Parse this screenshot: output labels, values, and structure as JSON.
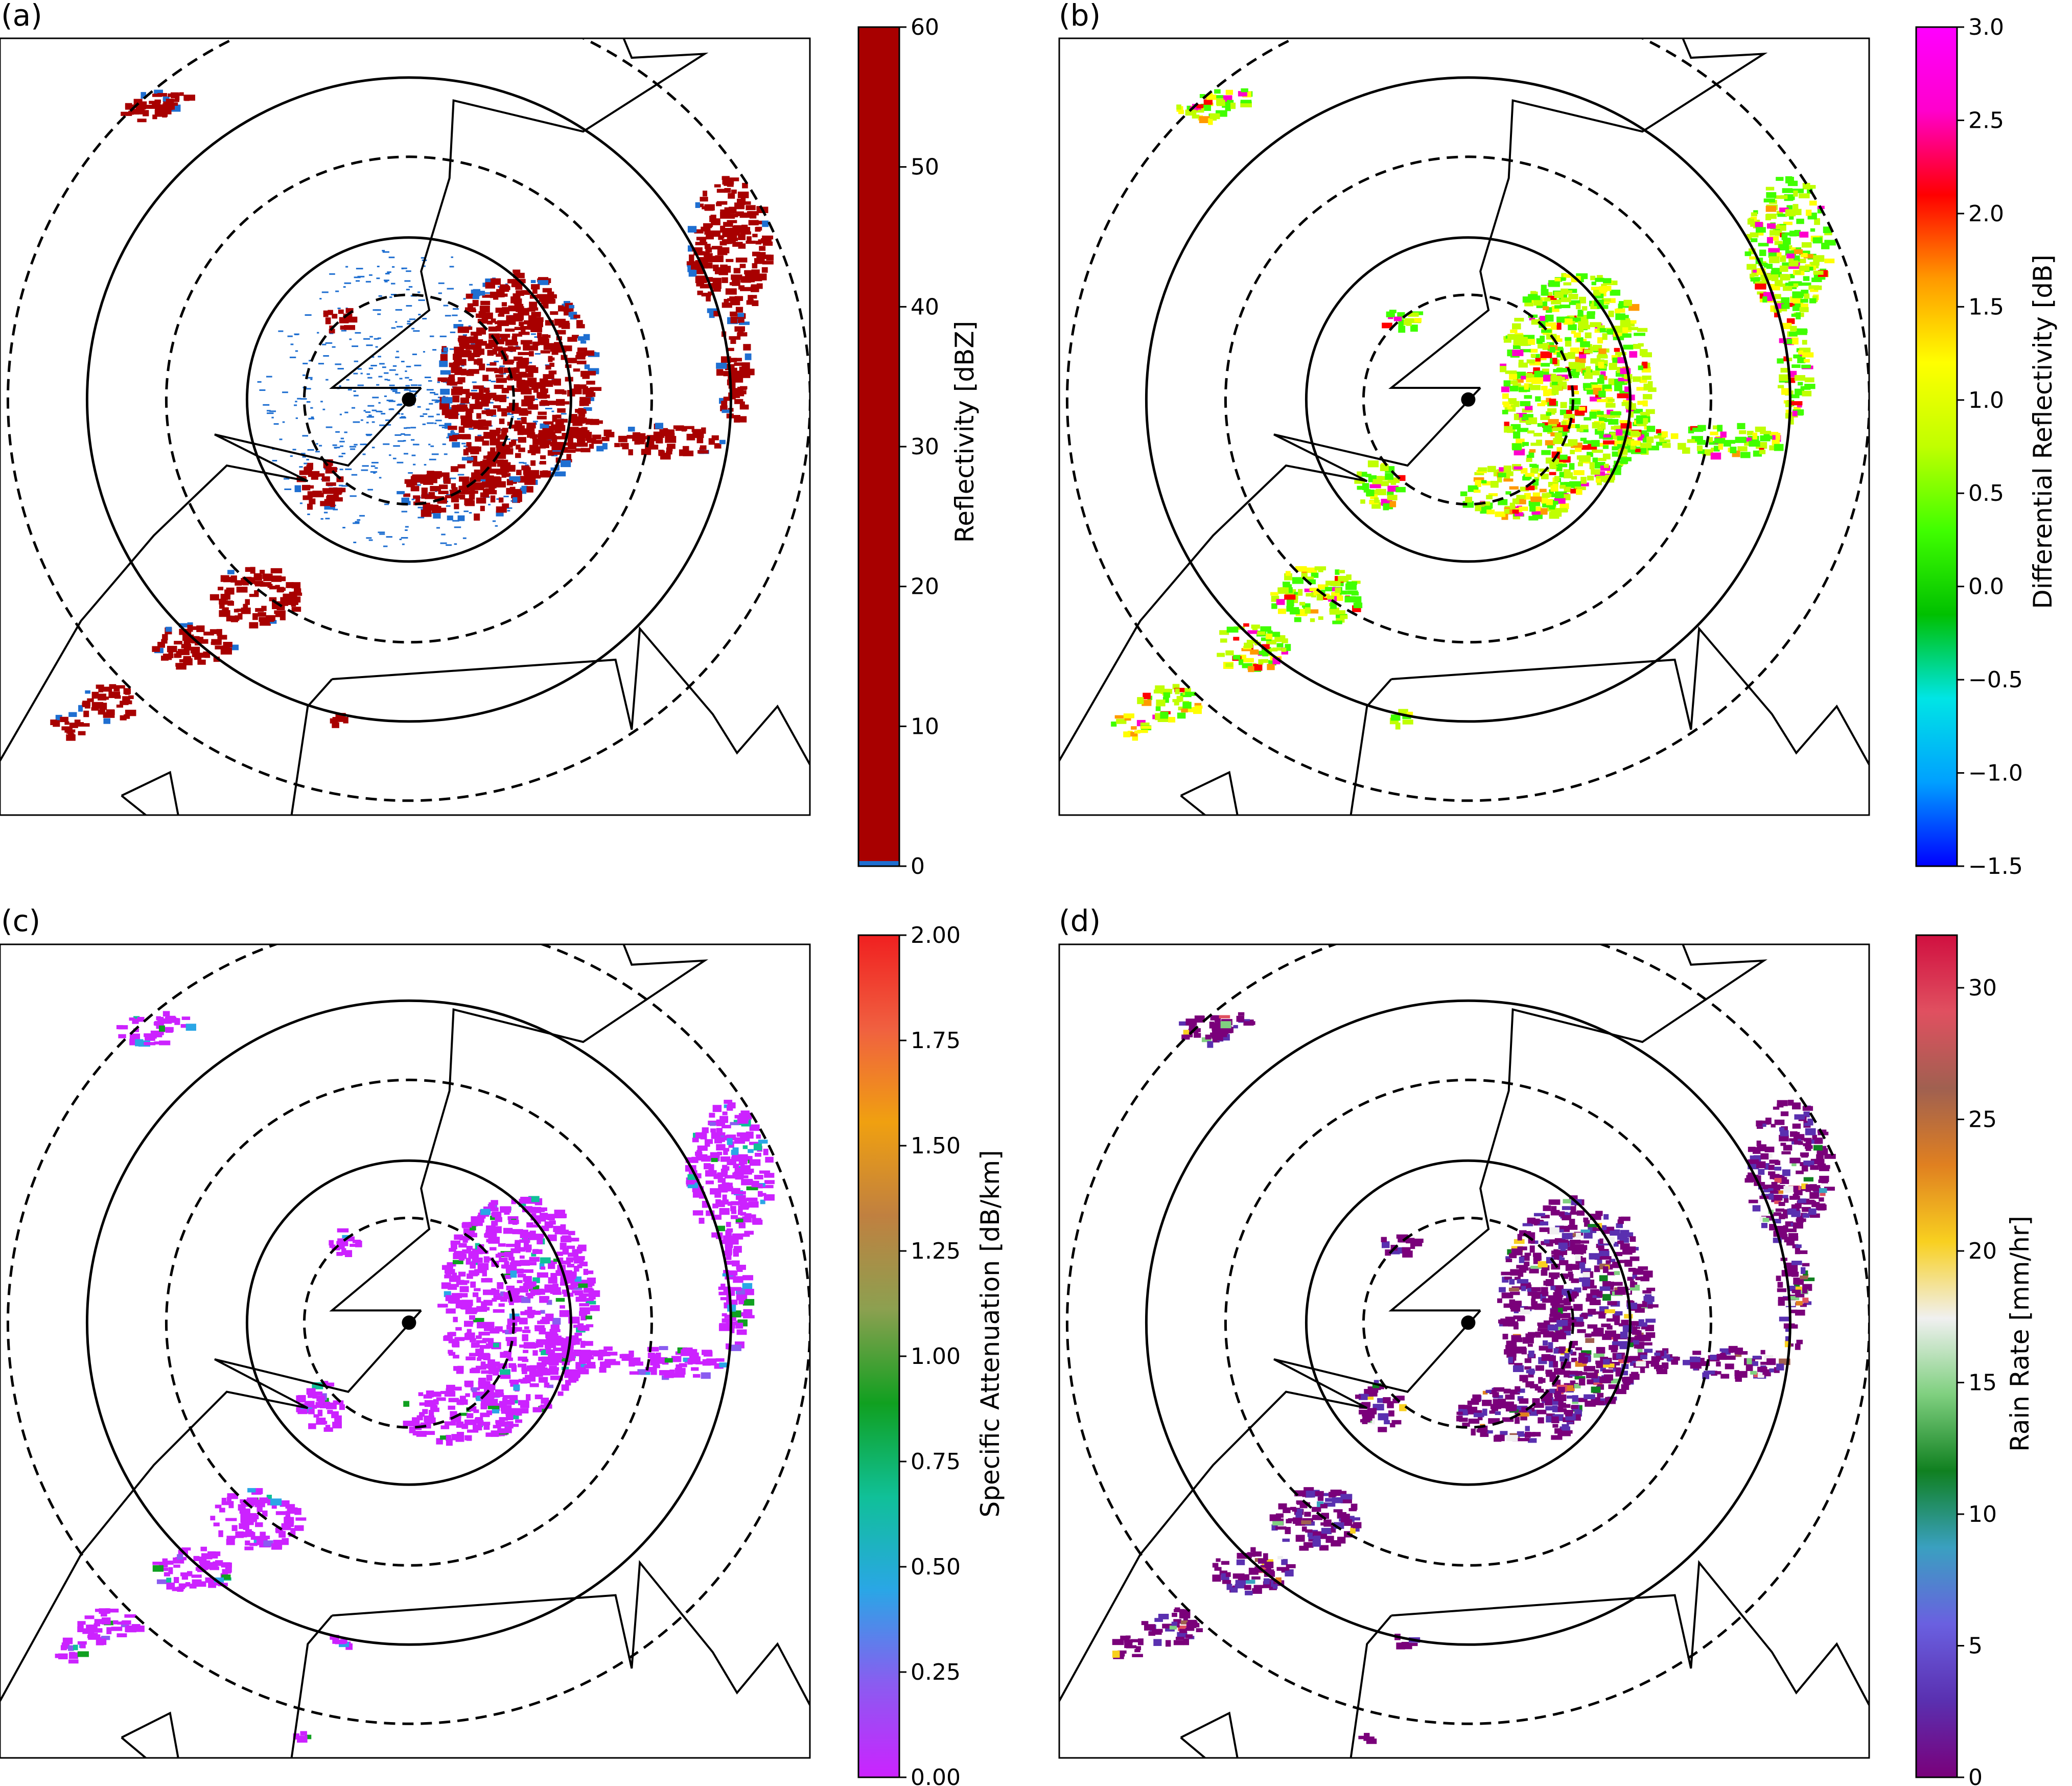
{
  "chart_data": [
    {
      "panel_label": "(a)",
      "type": "heatmap",
      "variable": "Reflectivity",
      "colorbar": {
        "label": "Reflectivity [dBZ]",
        "range": [
          0,
          60
        ],
        "ticks": [
          "0",
          "10",
          "20",
          "30",
          "40",
          "50",
          "60"
        ],
        "colors": [
          "#1f6fd1",
          "#a80000"
        ]
      },
      "range_rings": "alternating dashed and solid concentric rings around the radar site",
      "features": "dense blue low-reflectivity clutter near the radar; dark red echoes (≥ ~10 dBZ) forming a band from the south-west to the east"
    },
    {
      "panel_label": "(b)",
      "type": "heatmap",
      "variable": "Differential Reflectivity",
      "colorbar": {
        "label": "Differential Reflectivity [dB]",
        "range": [
          -1.5,
          3.0
        ],
        "ticks": [
          "−1.5",
          "−1.0",
          "−0.5",
          "0.0",
          "0.5",
          "1.0",
          "1.5",
          "2.0",
          "2.5",
          "3.0"
        ],
        "colors": [
          "#0000ff",
          "#00a0ff",
          "#00e5e5",
          "#00c000",
          "#40ff00",
          "#c0ff00",
          "#ffff00",
          "#ff9900",
          "#ff0000",
          "#ff00cc",
          "#ff00ff"
        ]
      },
      "features": "mostly green to yellow-green values (0.3–1.0 dB) with scattered red/orange cells along the echo band"
    },
    {
      "panel_label": "(c)",
      "type": "heatmap",
      "variable": "Specific Attenuation",
      "colorbar": {
        "label": "Specific Attenuation [dB/km]",
        "range": [
          0.0,
          2.0
        ],
        "ticks": [
          "0.00",
          "0.25",
          "0.50",
          "0.75",
          "1.00",
          "1.25",
          "1.50",
          "1.75",
          "2.00"
        ],
        "colors": [
          "#cc22ff",
          "#8a5cf0",
          "#2aa6e6",
          "#10c098",
          "#10a020",
          "#8ca050",
          "#c08040",
          "#f0a010",
          "#f06040",
          "#f02020"
        ]
      },
      "features": "nearly all values near 0 dB/km (magenta), a few small cells up to ~1.0 dB/km"
    },
    {
      "panel_label": "(d)",
      "type": "heatmap",
      "variable": "Rain Rate",
      "colorbar": {
        "label": "Rain Rate [mm/hr]",
        "range": [
          0,
          32
        ],
        "ticks": [
          "0",
          "5",
          "10",
          "15",
          "20",
          "25",
          "30"
        ],
        "colors": [
          "#7a007a",
          "#5a30b0",
          "#6a60e0",
          "#3aa0c0",
          "#108020",
          "#80d080",
          "#f0f0f0",
          "#f8d020",
          "#e08020",
          "#a06050",
          "#e05060",
          "#d01040"
        ]
      },
      "features": "mostly purple (0–5 mm/hr), isolated yellow/red cells up to ~25–30 mm/hr within the band"
    }
  ]
}
